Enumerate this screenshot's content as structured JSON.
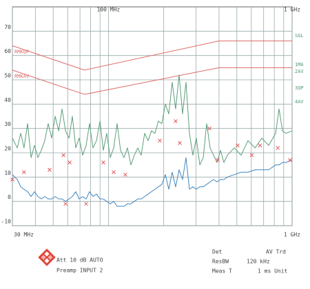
{
  "chart_data": {
    "type": "line",
    "xscale": "log",
    "xlim": [
      30,
      1000
    ],
    "ylim": [
      -10,
      80
    ],
    "yticks": [
      -10,
      0,
      10,
      20,
      30,
      40,
      50,
      60,
      70
    ],
    "xticks": [
      {
        "value": 30,
        "label": "30 MHz"
      },
      {
        "value": 100,
        "label": "100 MHz"
      },
      {
        "value": 1000,
        "label": "1 GHz"
      }
    ],
    "xgrid": [
      40,
      50,
      60,
      70,
      80,
      90,
      200,
      300,
      400,
      500,
      600,
      700,
      800,
      900
    ],
    "grid": true,
    "series": [
      {
        "name": "RMKQP",
        "color": "#e06a6a",
        "style": "line",
        "x": [
          30,
          74,
          400,
          1000
        ],
        "values": [
          64,
          54,
          66,
          66
        ]
      },
      {
        "name": "RMKAV",
        "color": "#e06a6a",
        "style": "line",
        "x": [
          30,
          74,
          400,
          1000
        ],
        "values": [
          54,
          44,
          55,
          55
        ]
      },
      {
        "color": "#5a9e78",
        "style": "line",
        "x": [
          30,
          31.9,
          33.3,
          34.7,
          36.3,
          37.9,
          39.6,
          41.3,
          43.1,
          45,
          47,
          49.1,
          51.3,
          53.6,
          55.9,
          58.4,
          61,
          63.6,
          66.4,
          69.3,
          72.4,
          75.6,
          78.9,
          82.4,
          86.1,
          89.9,
          93.8,
          97.9,
          102.3,
          106.8,
          111.5,
          116.4,
          121.5,
          126.9,
          132.5,
          138.4,
          144.5,
          150.8,
          157.5,
          164.5,
          171.6,
          179.2,
          187.1,
          195.4,
          204.1,
          213.1,
          222.4,
          232.2,
          242.5,
          253.3,
          264.4,
          276.1,
          288.3,
          301,
          314.5,
          328.3,
          342.8,
          357.9,
          373.7,
          390.3,
          407.4,
          425.4,
          444.1,
          484,
          528,
          575.5,
          627.8,
          684.3,
          745.8,
          813.3,
          849,
          886.5,
          925.2,
          1000
        ],
        "values": [
          26,
          22,
          28,
          22,
          32,
          18,
          23,
          18,
          21,
          25,
          32,
          26,
          35,
          29,
          38,
          29,
          26,
          35,
          22,
          26,
          19,
          23,
          32,
          22,
          25,
          33,
          21,
          28,
          18,
          22,
          32,
          21,
          18,
          22,
          15,
          19,
          22,
          19,
          28,
          25,
          29,
          28,
          33,
          32,
          40,
          36,
          49,
          38,
          52,
          36,
          49,
          28,
          19,
          26,
          15,
          18,
          32,
          22,
          19,
          16,
          21,
          16,
          19,
          22,
          19,
          25,
          22,
          26,
          23,
          28,
          38,
          29,
          28,
          29
        ]
      },
      {
        "color": "#3f86bf",
        "style": "line",
        "x": [
          30,
          31.9,
          33.3,
          34.7,
          36.3,
          37.9,
          39.6,
          41.3,
          43.1,
          45,
          47,
          49.1,
          51.3,
          53.6,
          55.9,
          58.4,
          61,
          63.6,
          66.4,
          69.3,
          72.4,
          75.6,
          78.9,
          82.4,
          86.1,
          89.9,
          93.8,
          97.9,
          102.3,
          106.8,
          111.5,
          116.4,
          121.5,
          126.9,
          132.5,
          138.4,
          144.5,
          150.8,
          157.5,
          164.5,
          171.6,
          179.2,
          187.1,
          195.4,
          204.1,
          213.1,
          222.4,
          232.2,
          242.5,
          253.3,
          264.4,
          276.1,
          288.3,
          301,
          314.5,
          328.3,
          342.8,
          357.9,
          373.7,
          390.3,
          407.4,
          425.4,
          444.1,
          484,
          528,
          575.5,
          627.8,
          684.3,
          745.8,
          813.3,
          849,
          886.5,
          925.2,
          1000
        ],
        "values": [
          11,
          9,
          6,
          5,
          4,
          2,
          4,
          2,
          1,
          2,
          1,
          1,
          2,
          1,
          1,
          0,
          1,
          2,
          4,
          1,
          2,
          1,
          4,
          2,
          3,
          1,
          1,
          0,
          -1,
          0,
          -2,
          -2,
          -2,
          -1,
          -1,
          0,
          1,
          1,
          2,
          3,
          4,
          5,
          6,
          7,
          11,
          5,
          12,
          6,
          13,
          9,
          18,
          5,
          6,
          5,
          6,
          6,
          7,
          8,
          9,
          8,
          9,
          9,
          10,
          11,
          12,
          12,
          13,
          13,
          13,
          15,
          15,
          16,
          16,
          17
        ]
      },
      {
        "color": "#e05a5a",
        "style": "marker",
        "x": [
          30,
          34.7,
          47.8,
          56.9,
          58.4,
          61.5,
          75.6,
          93.8,
          106.8,
          123.6,
          190.4,
          232.2,
          244.6,
          355,
          393.7,
          505,
          603,
          669,
          836,
          973
        ],
        "values": [
          9,
          12,
          13,
          19,
          -1,
          16,
          -1,
          16,
          12,
          11,
          25,
          33,
          24,
          30,
          17,
          23,
          19,
          23,
          22,
          17
        ]
      }
    ],
    "trace_labels": [
      "SGL",
      "1MA",
      "2AV",
      "3QP",
      "4AV"
    ],
    "footer": [
      "Att 10 dB AUTO",
      "Preamp INPUT 2",
      "Det",
      "AV Trd",
      "ResBW",
      "120 kHz",
      "Meas T",
      "1 ms Unit"
    ]
  }
}
